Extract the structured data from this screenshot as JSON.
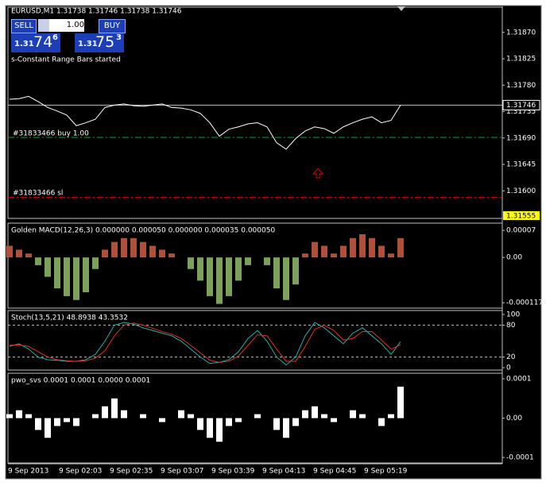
{
  "window": {
    "header": "EURUSD,M1  1.31738 1.31746 1.31738 1.31746",
    "sell": "SELL",
    "buy": "BUY",
    "lot": "1.00",
    "sell_price": [
      "1.31",
      "74",
      "6"
    ],
    "buy_price": [
      "1.31",
      "75",
      "3"
    ],
    "status": "s-Constant Range Bars started",
    "buy_order": "#31833466 buy 1.00",
    "sl_order": "#31833466 sl",
    "sl_tag": "1.31555"
  },
  "chart_data": [
    {
      "type": "line",
      "color": "#ffffff",
      "values": [
        1.31756,
        1.31757,
        1.31761,
        1.31752,
        1.31742,
        1.31736,
        1.31729,
        1.31711,
        1.31716,
        1.31722,
        1.31742,
        1.31746,
        1.31748,
        1.31745,
        1.31744,
        1.31746,
        1.31748,
        1.31742,
        1.31741,
        1.31738,
        1.31732,
        1.31716,
        1.31693,
        1.31705,
        1.31709,
        1.31714,
        1.31716,
        1.31709,
        1.31682,
        1.31671,
        1.31689,
        1.31702,
        1.31709,
        1.31706,
        1.31698,
        1.31709,
        1.31716,
        1.31722,
        1.31726,
        1.31716,
        1.3172,
        1.31746
      ],
      "ylim": [
        1.31553,
        1.31913
      ],
      "yticks": [
        {
          "value": 1.3187,
          "label": "1.31870"
        },
        1.31825,
        {
          "value": 1.3178,
          "label": "1.31780"
        },
        1.31735,
        {
          "value": 1.3169,
          "label": "1.31690"
        },
        1.31645,
        {
          "value": 1.316,
          "label": "1.31600"
        }
      ],
      "last_price": 1.31746,
      "levels": [
        {
          "value": 1.31691,
          "color": "#00b000"
        },
        {
          "value": 1.31589,
          "color": "#e00000"
        }
      ]
    },
    {
      "type": "bar",
      "title": "Golden MACD(12,26,3) 0.000000 0.000050 0.000000 0.000035 0.000050",
      "color": "#b0503c",
      "negative_color": "#7da05a",
      "values": [
        3e-05,
        2e-05,
        1e-05,
        -2e-05,
        -5e-05,
        -8e-05,
        -0.0001,
        -0.00011,
        -9e-05,
        -3e-05,
        2e-05,
        4e-05,
        5e-05,
        5e-05,
        4e-05,
        3e-05,
        2e-05,
        1e-05,
        0,
        -3e-05,
        -6e-05,
        -0.0001,
        -0.00012,
        -0.0001,
        -6e-05,
        -2e-05,
        0,
        -2e-05,
        -8e-05,
        -0.00011,
        -7e-05,
        1e-05,
        4e-05,
        3e-05,
        1e-05,
        3e-05,
        5e-05,
        6e-05,
        5e-05,
        3e-05,
        1e-05,
        5e-05
      ],
      "ylim": [
        -0.000131,
        8.85e-05
      ],
      "yticks": [
        7e-05,
        {
          "value": 0,
          "label": "0.00"
        },
        -0.000117
      ]
    },
    {
      "type": "line",
      "title": "Stoch(13,5,21) 48.8938 43.3532",
      "series": [
        {
          "color": "#20b2aa",
          "values": [
            40,
            45,
            35,
            20,
            15,
            14,
            12,
            12,
            15,
            25,
            50,
            80,
            85,
            82,
            75,
            70,
            65,
            60,
            50,
            35,
            20,
            8,
            10,
            15,
            30,
            55,
            70,
            50,
            20,
            5,
            20,
            60,
            85,
            75,
            60,
            45,
            65,
            75,
            60,
            45,
            25,
            49
          ]
        },
        {
          "color": "#e03030",
          "values": [
            42,
            43,
            40,
            30,
            20,
            15,
            13,
            12,
            13,
            18,
            32,
            60,
            80,
            84,
            80,
            74,
            68,
            63,
            55,
            42,
            28,
            14,
            10,
            12,
            22,
            42,
            62,
            60,
            35,
            12,
            12,
            40,
            72,
            80,
            70,
            52,
            55,
            68,
            68,
            52,
            35,
            43
          ]
        }
      ],
      "ylim": [
        -4.5,
        107.5
      ],
      "yticks": [
        100,
        80,
        20,
        0
      ],
      "levels": [
        80,
        20
      ]
    },
    {
      "type": "bar",
      "title": "pwo_svs 0.0001 0.0001 0.0000 0.0001",
      "color": "#ffffff",
      "negative_color": "#ffffff",
      "values": [
        1e-05,
        2e-05,
        1e-05,
        -3e-05,
        -5e-05,
        -2e-05,
        -1e-05,
        -2e-05,
        0,
        1e-05,
        3e-05,
        5e-05,
        2e-05,
        0,
        1e-05,
        0,
        -1e-05,
        0,
        2e-05,
        1e-05,
        -3e-05,
        -5e-05,
        -6e-05,
        -2e-05,
        -1e-05,
        0,
        1e-05,
        0,
        -3e-05,
        -5e-05,
        -2e-05,
        2e-05,
        3e-05,
        1e-05,
        -1e-05,
        0,
        2e-05,
        1e-05,
        0,
        -2e-05,
        1e-05,
        8e-05
      ],
      "ylim": [
        -0.000114,
        0.000114
      ],
      "yticks": [
        0.0001,
        {
          "value": 0,
          "label": "0.00"
        },
        -0.0001
      ],
      "x_labels": [
        "9 Sep 2013",
        "9 Sep 02:03",
        "9 Sep 02:35",
        "9 Sep 03:07",
        "9 Sep 03:39",
        "9 Sep 04:13",
        "9 Sep 04:45",
        "9 Sep 05:19"
      ]
    }
  ]
}
